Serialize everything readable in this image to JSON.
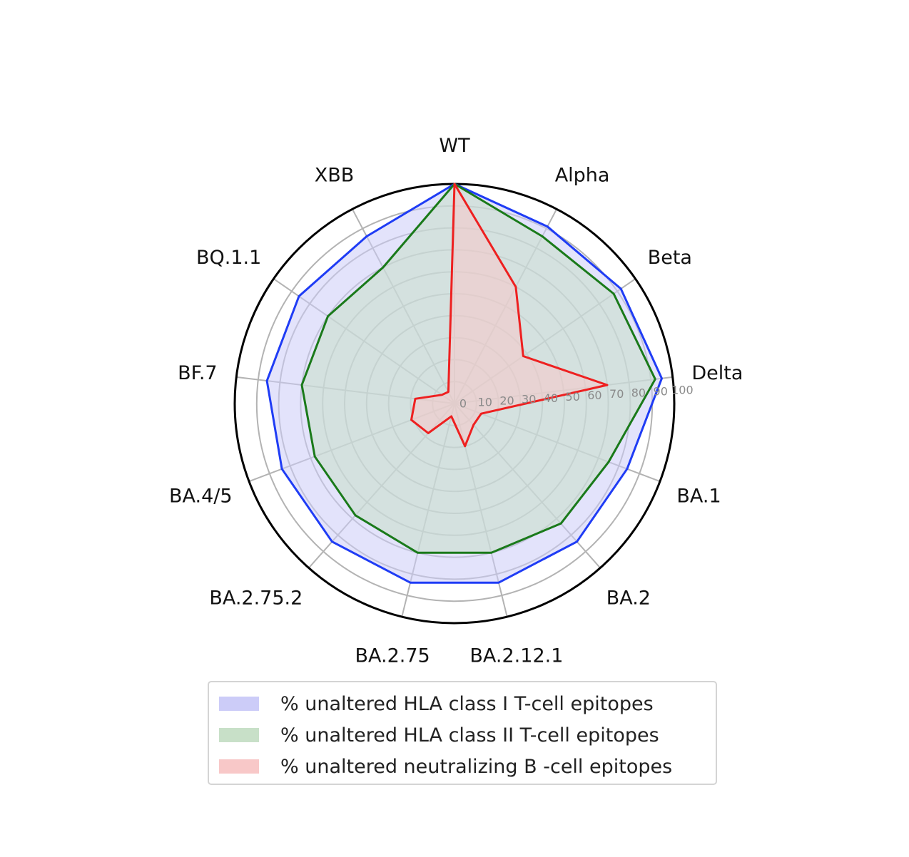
{
  "chart_data": {
    "type": "radar",
    "categories": [
      "WT",
      "Alpha",
      "Beta",
      "Delta",
      "BA.1",
      "BA.2",
      "BA.2.12.1",
      "BA.2.75",
      "BA.2.75.2",
      "BA.4/5",
      "BF.7",
      "BQ.1.1",
      "XBB"
    ],
    "r_ticks": [
      "0",
      "10",
      "20",
      "30",
      "40",
      "50",
      "60",
      "70",
      "80",
      "90",
      "100"
    ],
    "rlim": [
      0,
      100
    ],
    "grid": true,
    "legend_position": "bottom",
    "series": [
      {
        "name": "% unaltered HLA class I T-cell epitopes",
        "color": "#1f3cf5",
        "fill": "#ccccf8",
        "values": [
          100,
          91,
          92,
          95,
          84,
          84,
          84,
          84,
          84,
          84,
          86,
          86,
          86
        ]
      },
      {
        "name": "% unaltered HLA class II T-cell epitopes",
        "color": "#1a7a1a",
        "fill": "#c8e0c8",
        "values": [
          100,
          86,
          88,
          92,
          75,
          73,
          70,
          70,
          68,
          68,
          70,
          70,
          70
        ]
      },
      {
        "name": "% unaltered neutralizing B -cell epitopes",
        "color": "#ee2020",
        "fill": "#f8c8c8",
        "values": [
          100,
          60,
          38,
          70,
          13,
          13,
          20,
          6,
          18,
          21,
          18,
          7,
          6
        ]
      }
    ]
  }
}
